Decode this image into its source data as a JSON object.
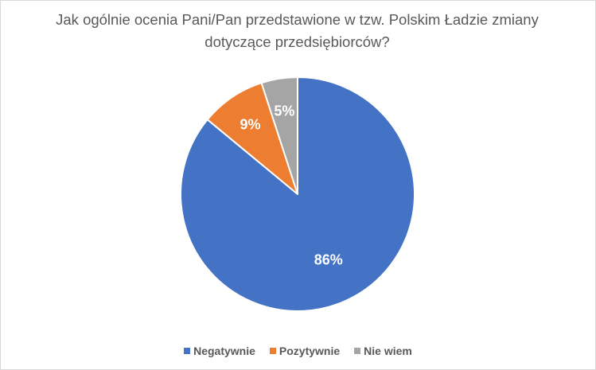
{
  "chart_data": {
    "type": "pie",
    "title_lines": [
      "Jak ogólnie ocenia Pani/Pan przedstawione w tzw. Polskim Ładzie zmiany",
      "dotyczące przedsiębiorców?"
    ],
    "categories": [
      "Negatywnie",
      "Pozytywnie",
      "Nie wiem"
    ],
    "values": [
      86,
      9,
      5
    ],
    "labels": [
      "86%",
      "9%",
      "5%"
    ],
    "colors": [
      "#4472C4",
      "#ED7D31",
      "#A5A5A5"
    ],
    "start": "12 o'clock",
    "direction": "clockwise",
    "legend_position": "bottom"
  }
}
